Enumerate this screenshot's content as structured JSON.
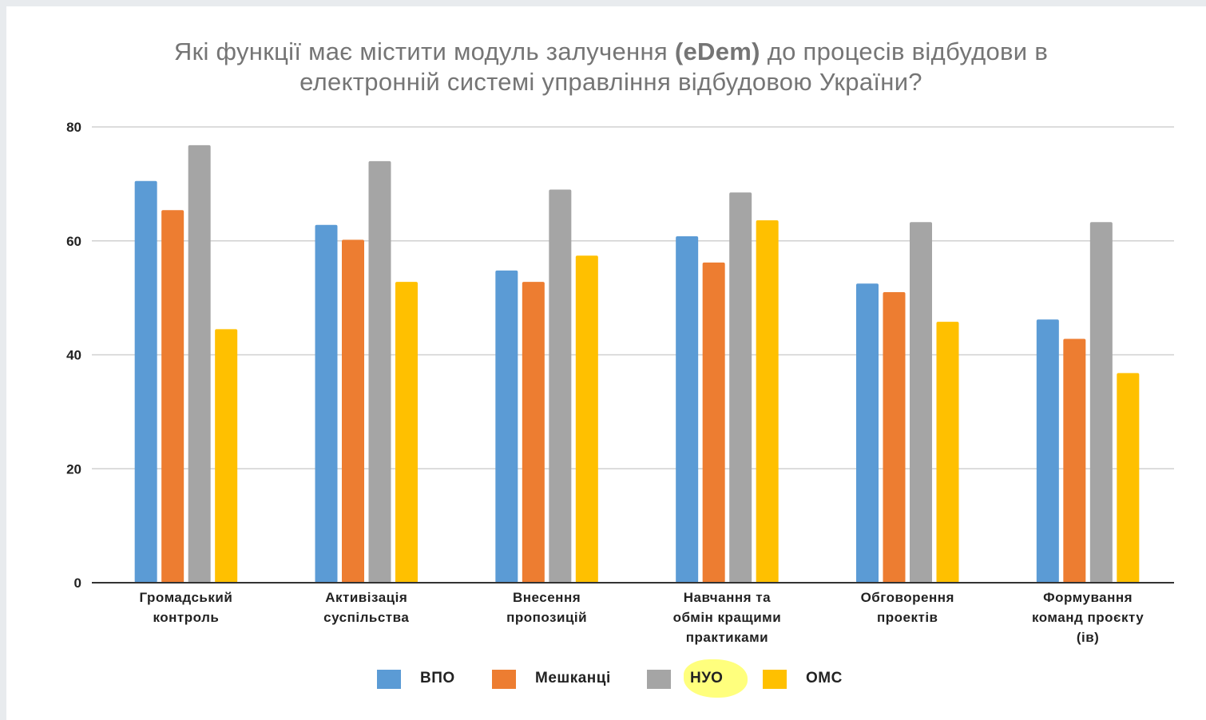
{
  "title": {
    "part1": "Які функції має містити модуль залучення ",
    "bold": "(eDem)",
    "part2": " до процесів відбудови в",
    "line2": "електронній системі управління відбудовою України?"
  },
  "colors": {
    "ВПО": "#5b9bd5",
    "Мешканці": "#ed7d31",
    "НУО": "#a5a5a5",
    "ОМС": "#ffc000",
    "highlight": "#ffff66"
  },
  "chart_data": {
    "type": "bar",
    "title": "Які функції має містити модуль залучення (eDem) до процесів відбудови в електронній системі управління відбудовою України?",
    "categories": [
      [
        "Громадський",
        "контроль"
      ],
      [
        "Активізація",
        "суспільства"
      ],
      [
        "Внесення",
        "пропозицій"
      ],
      [
        "Навчання та",
        "обмін кращими",
        "практиками"
      ],
      [
        "Обговорення",
        "проектів"
      ],
      [
        "Формування",
        "команд проєкту",
        "(ів)"
      ]
    ],
    "series": [
      {
        "name": "ВПО",
        "color": "#5b9bd5",
        "values": [
          70.5,
          62.8,
          54.8,
          60.8,
          52.5,
          46.2
        ]
      },
      {
        "name": "Мешканці",
        "color": "#ed7d31",
        "values": [
          65.4,
          60.2,
          52.8,
          56.2,
          51.0,
          42.8
        ]
      },
      {
        "name": "НУО",
        "color": "#a5a5a5",
        "values": [
          76.8,
          74.0,
          69.0,
          68.5,
          63.3,
          63.3
        ]
      },
      {
        "name": "ОМС",
        "color": "#ffc000",
        "values": [
          44.5,
          52.8,
          57.4,
          63.6,
          45.8,
          36.8
        ]
      }
    ],
    "y_ticks": [
      0,
      20,
      40,
      60,
      80
    ],
    "ylim": [
      0,
      80
    ],
    "grid": true,
    "legend_position": "bottom"
  }
}
